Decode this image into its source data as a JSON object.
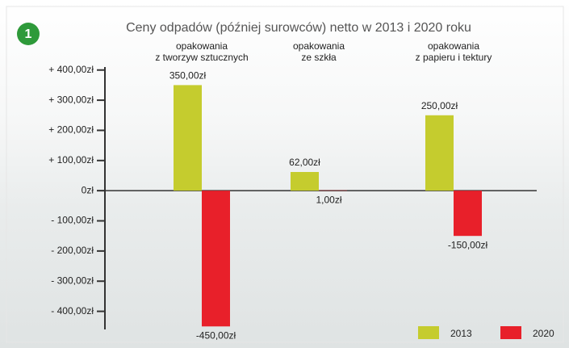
{
  "chart_data": {
    "type": "bar",
    "badge": "1",
    "title": "Ceny odpadów (później surowców) netto w 2013 i 2020 roku",
    "categories": [
      [
        "opakowania",
        "z tworzyw sztucznych"
      ],
      [
        "opakowania",
        "ze szkła"
      ],
      [
        "opakowania",
        "z papieru i tektury"
      ]
    ],
    "series": [
      {
        "name": "2013",
        "color": "#c5cc2e",
        "values": [
          350,
          62,
          250
        ],
        "value_labels": [
          "350,00zł",
          "62,00zł",
          "250,00zł"
        ]
      },
      {
        "name": "2020",
        "color": "#e8202a",
        "values": [
          -450,
          1,
          -150
        ],
        "value_labels": [
          "-450,00zł",
          "1,00zł",
          "-150,00zł"
        ]
      }
    ],
    "ylim": [
      -460,
      410
    ],
    "yticks": [
      {
        "value": 400,
        "label": "+ 400,00zł"
      },
      {
        "value": 300,
        "label": "+ 300,00zł"
      },
      {
        "value": 200,
        "label": "+ 200,00zł"
      },
      {
        "value": 100,
        "label": "+ 100,00zł"
      },
      {
        "value": 0,
        "label": "0zł"
      },
      {
        "value": -100,
        "label": "- 100,00zł"
      },
      {
        "value": -200,
        "label": "- 200,00zł"
      },
      {
        "value": -300,
        "label": "- 300,00zł"
      },
      {
        "value": -400,
        "label": "- 400,00zł"
      }
    ],
    "legend": "bottom-right"
  }
}
